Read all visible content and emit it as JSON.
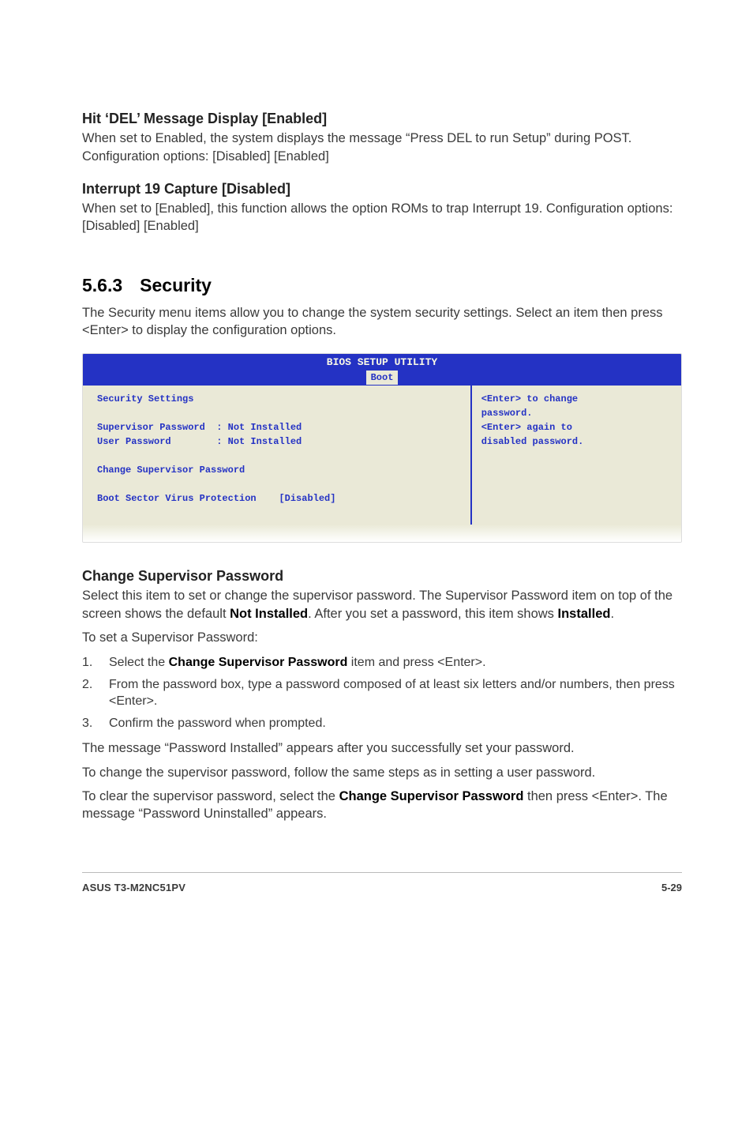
{
  "headings": {
    "hit_del": "Hit ‘DEL’ Message Display [Enabled]",
    "interrupt": "Interrupt 19 Capture [Disabled]",
    "security_num": "5.6.3",
    "security_title": "Security",
    "change_supervisor": "Change Supervisor Password"
  },
  "paragraphs": {
    "hit_del_body": "When set to Enabled, the system displays the message “Press DEL to run Setup” during POST. Configuration options: [Disabled] [Enabled]",
    "interrupt_body": "When set to [Enabled], this function allows the option ROMs to trap Interrupt 19. Configuration options: [Disabled] [Enabled]",
    "security_intro": "The Security menu items allow you to change the system security settings. Select an item then press <Enter> to display the configuration options.",
    "change_sup_p1_a": "Select this item to set or change the supervisor password. The Supervisor Password item on top of the screen shows the default ",
    "change_sup_p1_b": "Not Installed",
    "change_sup_p1_c": ". After you set a password, this item shows ",
    "change_sup_p1_d": "Installed",
    "change_sup_p1_e": ".",
    "to_set": "To set a Supervisor Password:",
    "msg_installed": "The message “Password Installed” appears after you successfully set your password.",
    "change_follow": "To change the supervisor password, follow the same steps as in setting a user password.",
    "clear_a": "To clear the supervisor password, select the ",
    "clear_b": "Change Supervisor Password",
    "clear_c": " then press <Enter>. The message “Password Uninstalled” appears."
  },
  "list": {
    "n1": "1.",
    "i1_a": "Select the ",
    "i1_b": "Change Supervisor Password",
    "i1_c": " item and press <Enter>.",
    "n2": "2.",
    "i2": "From the password box, type a password composed of at least six letters and/or numbers, then press <Enter>.",
    "n3": "3.",
    "i3": "Confirm the password when prompted."
  },
  "bios": {
    "title": "BIOS SETUP UTILITY",
    "tab": "Boot",
    "left": {
      "heading": "Security Settings",
      "row1": "Supervisor Password  : Not Installed",
      "row2": "User Password        : Not Installed",
      "row3": "Change Supervisor Password",
      "row4": "Boot Sector Virus Protection    [Disabled]"
    },
    "right": {
      "l1": "<Enter> to change",
      "l2": "password.",
      "l3": "<Enter> again to",
      "l4": "disabled password."
    },
    "colors": {
      "header_bg": "#2432c4",
      "header_fg": "#fbfae6",
      "panel_bg": "#eae9d7",
      "text": "#2432c4"
    }
  },
  "footer": {
    "product": "ASUS T3-M2NC51PV",
    "page": "5-29"
  }
}
